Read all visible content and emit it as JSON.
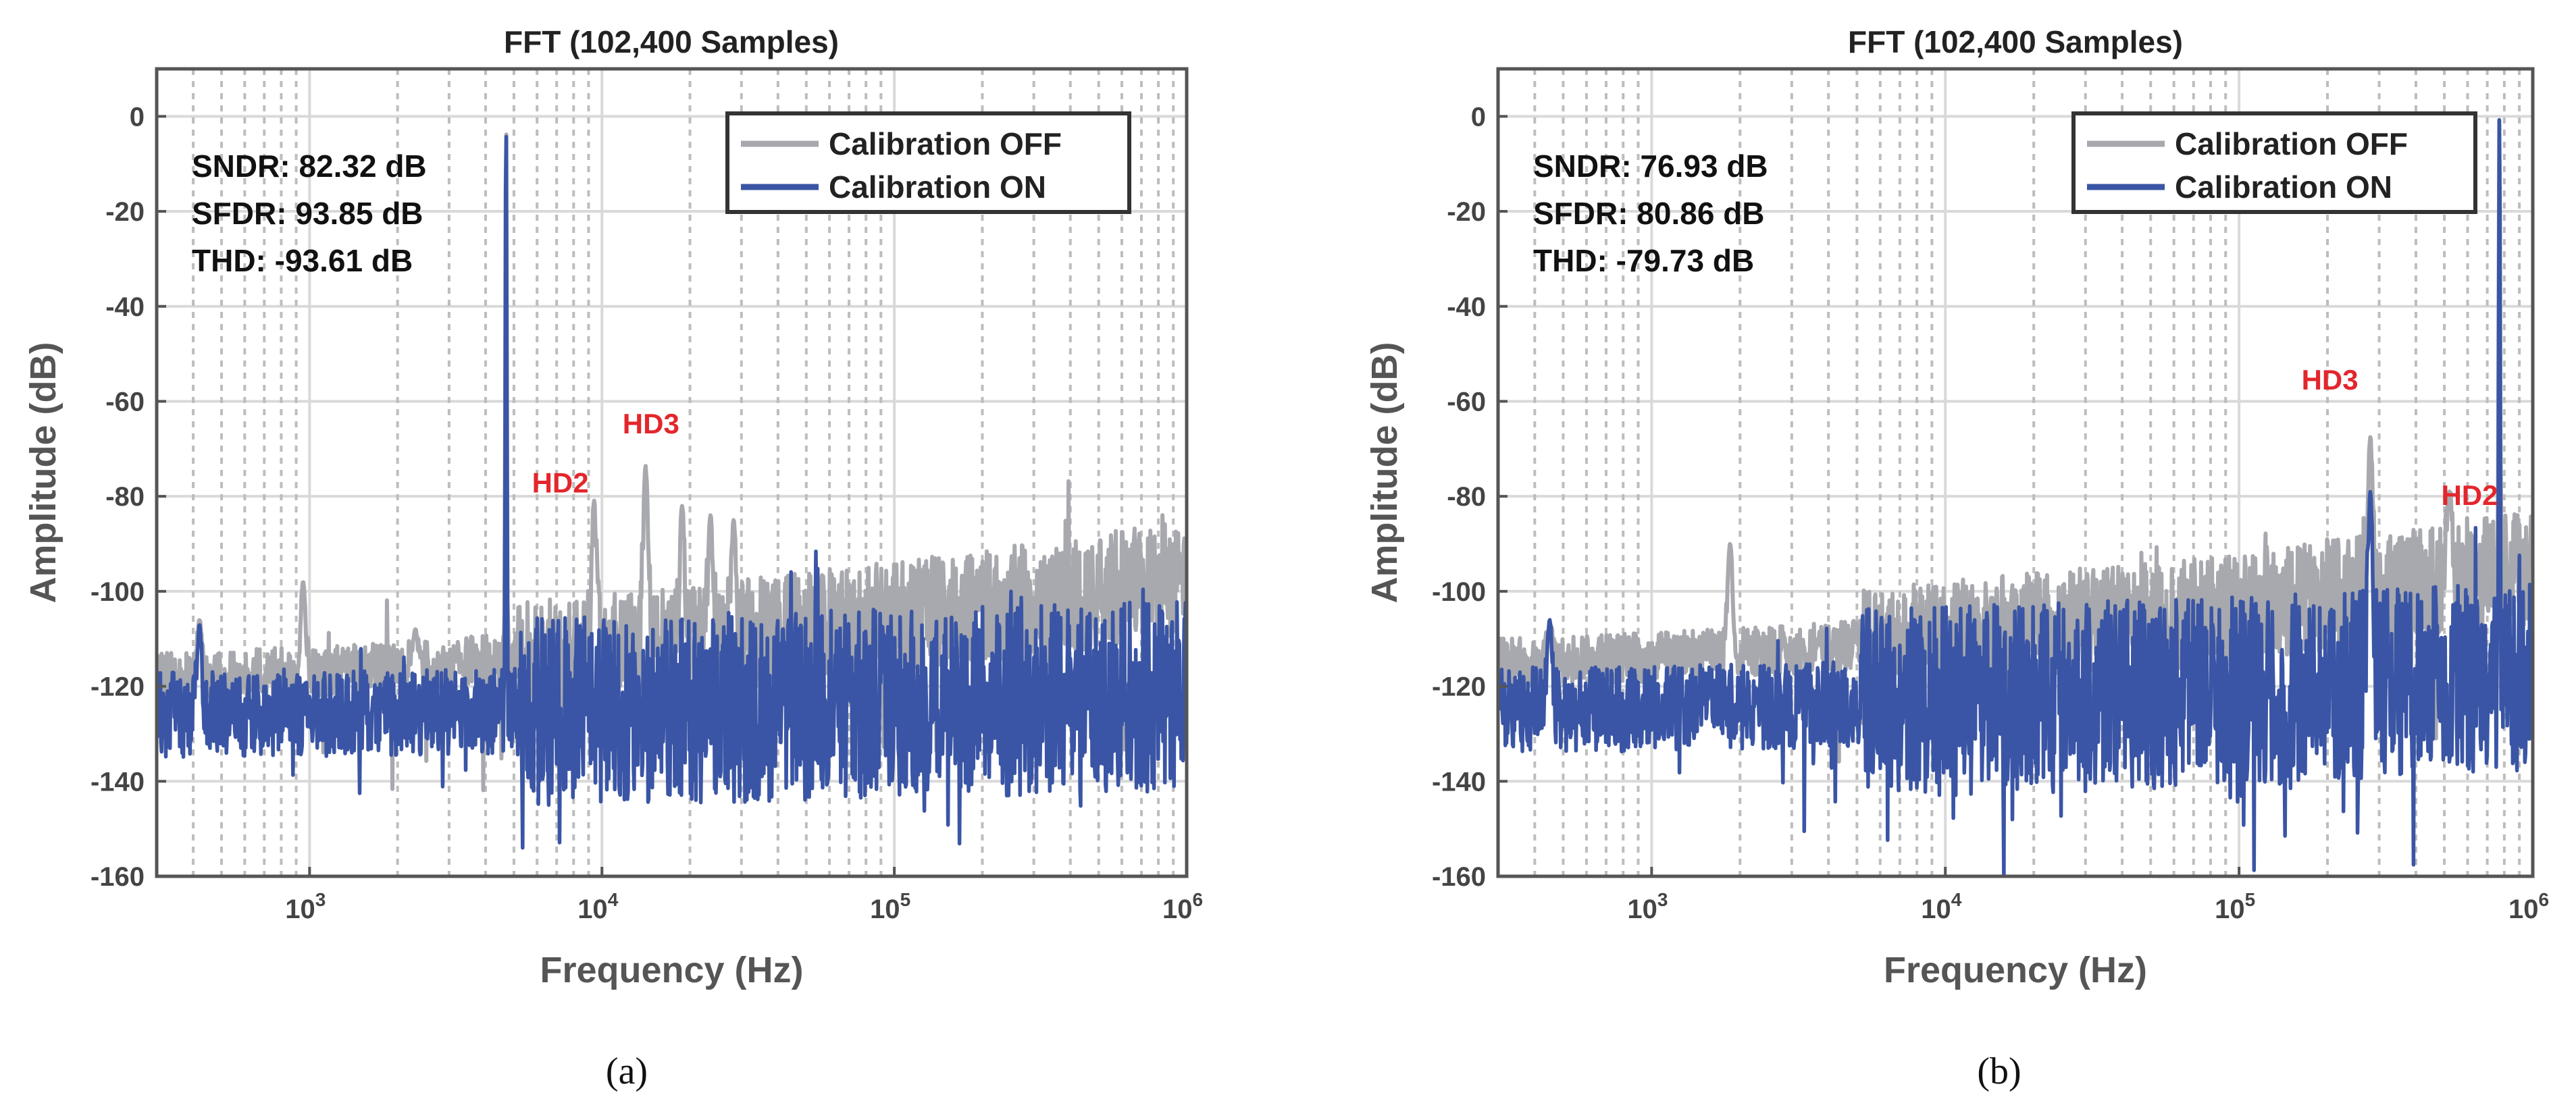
{
  "colors": {
    "off": "#a7a9ae",
    "on": "#3a55a5",
    "annotation": "#e3262c",
    "grid": "#d9d9d9",
    "frame": "#555555"
  },
  "chart_data": [
    {
      "type": "line",
      "title": "FFT (102,400 Samples)",
      "xlabel": "Frequency (Hz)",
      "ylabel": "Amplitude (dB)",
      "xscale": "log",
      "xlim": [
        300,
        1000000
      ],
      "ylim": [
        -160,
        10
      ],
      "yticks": [
        0,
        -20,
        -40,
        -60,
        -80,
        -100,
        -120,
        -140,
        -160
      ],
      "ytick_labels": [
        "0",
        "-20",
        "-40",
        "-60",
        "-80",
        "-100",
        "-120",
        "-140",
        "-160"
      ],
      "xtick_base": "10",
      "xtick_exponents": [
        "3",
        "4",
        "5",
        "6"
      ],
      "xticks": [
        1000,
        10000,
        100000,
        1000000
      ],
      "legend": {
        "position": "top-right",
        "entries": [
          "Calibration OFF",
          "Calibration ON"
        ]
      },
      "stats": [
        "SNDR: 82.32 dB",
        "SFDR: 93.85 dB",
        "THD: -93.61 dB"
      ],
      "annotations": [
        {
          "text": "HD2",
          "x": 9400,
          "y": -80.9
        },
        {
          "text": "HD3",
          "x": 14100,
          "y": -73.6
        }
      ],
      "series": [
        {
          "name": "Calibration OFF",
          "noise_start_db": -118,
          "noise_end_db": -97,
          "spread_db": 12,
          "peaks": [
            [
              420,
              -106
            ],
            [
              950,
              -98
            ],
            [
              2300,
              -108
            ],
            [
              4700,
              1
            ],
            [
              9400,
              -80.9
            ],
            [
              14100,
              -73.6
            ],
            [
              18800,
              -82
            ],
            [
              23500,
              -84
            ],
            [
              28200,
              -85
            ]
          ]
        },
        {
          "name": "Calibration ON",
          "noise_start_db": -126,
          "noise_end_db": -122,
          "spread_db": 20,
          "peaks": [
            [
              300,
              -134
            ],
            [
              420,
              -107
            ],
            [
              4700,
              1
            ]
          ]
        }
      ],
      "caption": "(a)"
    },
    {
      "type": "line",
      "title": "FFT (102,400 Samples)",
      "xlabel": "Frequency (Hz)",
      "ylabel": "Amplitude (dB)",
      "xscale": "log",
      "xlim": [
        300,
        1000000
      ],
      "ylim": [
        -160,
        10
      ],
      "yticks": [
        0,
        -20,
        -40,
        -60,
        -80,
        -100,
        -120,
        -140,
        -160
      ],
      "ytick_labels": [
        "0",
        "-20",
        "-40",
        "-60",
        "-80",
        "-100",
        "-120",
        "-140",
        "-160"
      ],
      "xtick_base": "10",
      "xtick_exponents": [
        "3",
        "4",
        "5",
        "6"
      ],
      "xticks": [
        1000,
        10000,
        100000,
        1000000
      ],
      "legend": {
        "position": "top-right",
        "entries": [
          "Calibration OFF",
          "Calibration ON"
        ]
      },
      "stats": [
        "SNDR: 76.93 dB",
        "SFDR: 80.86 dB",
        "THD: -79.73 dB"
      ],
      "annotations": [
        {
          "text": "HD3",
          "x": 280000,
          "y": -67.5
        },
        {
          "text": "HD2",
          "x": 520000,
          "y": -79
        }
      ],
      "series": [
        {
          "name": "Calibration OFF",
          "noise_start_db": -115,
          "noise_end_db": -95,
          "spread_db": 12,
          "peaks": [
            [
              450,
              -107
            ],
            [
              1850,
              -90
            ],
            [
              3700,
              -110
            ],
            [
              280000,
              -67.5
            ],
            [
              520000,
              -79
            ],
            [
              770000,
              1
            ]
          ]
        },
        {
          "name": "Calibration ON",
          "noise_start_db": -125,
          "noise_end_db": -118,
          "spread_db": 20,
          "peaks": [
            [
              300,
              -120
            ],
            [
              450,
              -106
            ],
            [
              280000,
              -79
            ],
            [
              770000,
              1
            ]
          ]
        }
      ],
      "caption": "(b)"
    }
  ]
}
